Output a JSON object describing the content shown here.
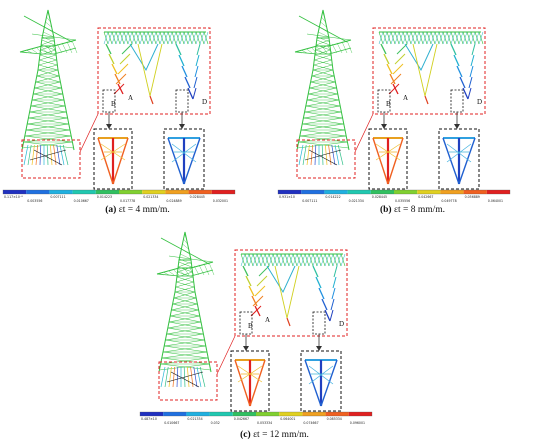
{
  "panels": [
    {
      "id": "a",
      "caption_letter": "(a)",
      "caption_eq": "εt = 4 mm/m.",
      "colorbar_ticks_top": [
        "0.117×10⁻⁸",
        "0.007111",
        "0.014223",
        "0.021334",
        "0.028445"
      ],
      "colorbar_ticks_bottom": [
        "0.003556",
        "0.010667",
        "0.017778",
        "0.024889",
        "0.032001"
      ],
      "labels": {
        "A": "A",
        "B": "B",
        "D": "D"
      }
    },
    {
      "id": "b",
      "caption_letter": "(b)",
      "caption_eq": "εt = 8 mm/m.",
      "colorbar_ticks_top": [
        "0.931×10",
        "0.014222",
        "0.028445",
        "0.042667",
        "0.056889"
      ],
      "colorbar_ticks_bottom": [
        "0.007111",
        "0.021334",
        "0.035556",
        "0.049778",
        "0.064001"
      ],
      "labels": {
        "A": "A",
        "B": "B",
        "D": "D"
      }
    },
    {
      "id": "c",
      "caption_letter": "(c)",
      "caption_eq": "εt = 12 mm/m.",
      "colorbar_ticks_top": [
        "0.487×10",
        "0.021334",
        "0.042667",
        "0.064001",
        "0.085334"
      ],
      "colorbar_ticks_bottom": [
        "0.010667",
        "0.032",
        "0.053334",
        "0.074667",
        "0.096001"
      ],
      "labels": {
        "A": "A",
        "B": "B",
        "D": "D"
      }
    }
  ],
  "colors": {
    "dashed_red": "#e02020",
    "dashed_black": "#111111",
    "tower_green": "#34c040",
    "arrow": "#333333"
  }
}
